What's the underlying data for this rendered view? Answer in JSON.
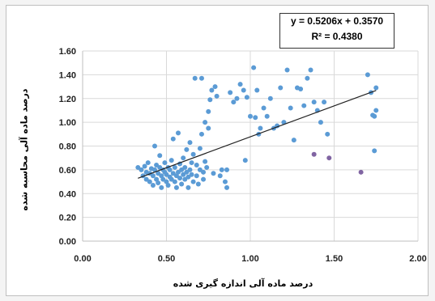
{
  "chart_data": {
    "type": "scatter",
    "xlabel": "درصد ماده آلی اندازه گیری شده",
    "ylabel": "درصد ماده آلی محاسبه شده",
    "xlim": [
      0,
      2
    ],
    "ylim": [
      0,
      1.6
    ],
    "x_ticks": [
      "0.00",
      "0.50",
      "1.00",
      "1.50",
      "2.00"
    ],
    "y_ticks": [
      "0.00",
      "0.20",
      "0.40",
      "0.60",
      "0.80",
      "1.00",
      "1.20",
      "1.40",
      "1.60"
    ],
    "grid": true,
    "trendline": {
      "equation": "y = 0.5206x + 0.3570",
      "r2_label": "R² = 0.4380",
      "slope": 0.5206,
      "intercept": 0.357,
      "x_range": [
        0.33,
        1.75
      ]
    },
    "point_color": "#5b9bd5",
    "outlier_color": "#8064a2",
    "points": [
      [
        0.33,
        0.62
      ],
      [
        0.35,
        0.6
      ],
      [
        0.36,
        0.55
      ],
      [
        0.37,
        0.63
      ],
      [
        0.38,
        0.52
      ],
      [
        0.38,
        0.58
      ],
      [
        0.39,
        0.66
      ],
      [
        0.4,
        0.5
      ],
      [
        0.4,
        0.57
      ],
      [
        0.41,
        0.61
      ],
      [
        0.42,
        0.47
      ],
      [
        0.42,
        0.55
      ],
      [
        0.43,
        0.6
      ],
      [
        0.43,
        0.8
      ],
      [
        0.44,
        0.52
      ],
      [
        0.44,
        0.64
      ],
      [
        0.45,
        0.57
      ],
      [
        0.45,
        0.49
      ],
      [
        0.46,
        0.62
      ],
      [
        0.46,
        0.72
      ],
      [
        0.47,
        0.55
      ],
      [
        0.47,
        0.45
      ],
      [
        0.48,
        0.6
      ],
      [
        0.48,
        0.52
      ],
      [
        0.49,
        0.58
      ],
      [
        0.49,
        0.66
      ],
      [
        0.5,
        0.5
      ],
      [
        0.5,
        0.56
      ],
      [
        0.51,
        0.62
      ],
      [
        0.51,
        0.47
      ],
      [
        0.52,
        0.54
      ],
      [
        0.52,
        0.6
      ],
      [
        0.53,
        0.52
      ],
      [
        0.53,
        0.68
      ],
      [
        0.54,
        0.57
      ],
      [
        0.54,
        0.86
      ],
      [
        0.55,
        0.5
      ],
      [
        0.55,
        0.62
      ],
      [
        0.56,
        0.55
      ],
      [
        0.56,
        0.45
      ],
      [
        0.57,
        0.58
      ],
      [
        0.57,
        0.91
      ],
      [
        0.58,
        0.53
      ],
      [
        0.58,
        0.65
      ],
      [
        0.59,
        0.48
      ],
      [
        0.59,
        0.6
      ],
      [
        0.6,
        0.56
      ],
      [
        0.6,
        0.7
      ],
      [
        0.61,
        0.52
      ],
      [
        0.61,
        0.62
      ],
      [
        0.62,
        0.58
      ],
      [
        0.62,
        0.77
      ],
      [
        0.63,
        0.54
      ],
      [
        0.63,
        0.45
      ],
      [
        0.64,
        0.6
      ],
      [
        0.64,
        0.83
      ],
      [
        0.65,
        0.56
      ],
      [
        0.65,
        0.66
      ],
      [
        0.66,
        0.5
      ],
      [
        0.66,
        0.73
      ],
      [
        0.67,
        1.37
      ],
      [
        0.68,
        0.55
      ],
      [
        0.68,
        0.64
      ],
      [
        0.69,
        0.48
      ],
      [
        0.7,
        0.6
      ],
      [
        0.7,
        0.78
      ],
      [
        0.71,
        1.37
      ],
      [
        0.71,
        0.9
      ],
      [
        0.72,
        0.58
      ],
      [
        0.72,
        0.52
      ],
      [
        0.73,
        1.0
      ],
      [
        0.73,
        0.67
      ],
      [
        0.74,
        0.62
      ],
      [
        0.75,
        1.09
      ],
      [
        0.75,
        0.95
      ],
      [
        0.76,
        1.19
      ],
      [
        0.77,
        1.27
      ],
      [
        0.78,
        0.57
      ],
      [
        0.79,
        1.3
      ],
      [
        0.8,
        1.22
      ],
      [
        0.82,
        0.55
      ],
      [
        0.83,
        0.6
      ],
      [
        0.85,
        0.5
      ],
      [
        0.86,
        0.45
      ],
      [
        0.86,
        0.6
      ],
      [
        0.88,
        1.25
      ],
      [
        0.9,
        1.17
      ],
      [
        0.92,
        1.2
      ],
      [
        0.94,
        1.32
      ],
      [
        0.96,
        1.27
      ],
      [
        0.97,
        0.68
      ],
      [
        0.98,
        1.21
      ],
      [
        1.0,
        1.05
      ],
      [
        1.02,
        1.46
      ],
      [
        1.03,
        1.04
      ],
      [
        1.04,
        1.27
      ],
      [
        1.05,
        0.9
      ],
      [
        1.06,
        0.95
      ],
      [
        1.08,
        1.12
      ],
      [
        1.1,
        1.05
      ],
      [
        1.12,
        1.2
      ],
      [
        1.14,
        0.95
      ],
      [
        1.16,
        0.97
      ],
      [
        1.18,
        1.29
      ],
      [
        1.2,
        1.0
      ],
      [
        1.22,
        1.44
      ],
      [
        1.24,
        1.12
      ],
      [
        1.26,
        0.85
      ],
      [
        1.28,
        1.29
      ],
      [
        1.3,
        1.28
      ],
      [
        1.32,
        1.14
      ],
      [
        1.34,
        1.37
      ],
      [
        1.36,
        1.44
      ],
      [
        1.38,
        1.17
      ],
      [
        1.4,
        1.1
      ],
      [
        1.42,
        1.0
      ],
      [
        1.44,
        1.17
      ],
      [
        1.46,
        0.9
      ],
      [
        1.7,
        1.4
      ],
      [
        1.72,
        1.25
      ],
      [
        1.73,
        1.06
      ],
      [
        1.74,
        1.05
      ],
      [
        1.75,
        1.1
      ],
      [
        1.74,
        0.76
      ],
      [
        1.75,
        1.29
      ]
    ],
    "outliers": [
      [
        1.38,
        0.73
      ],
      [
        1.47,
        0.7
      ],
      [
        1.66,
        0.58
      ]
    ]
  }
}
